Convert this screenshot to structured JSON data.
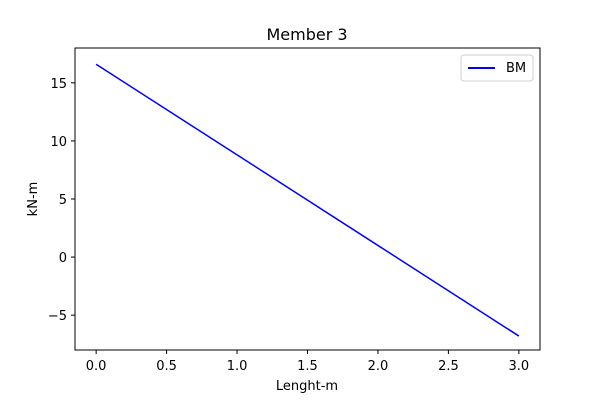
{
  "chart_data": {
    "type": "line",
    "title": "Member 3",
    "xlabel": "Lenght-m",
    "ylabel": "kN-m",
    "xlim": [
      -0.15,
      3.15
    ],
    "ylim": [
      -8.0,
      18.0
    ],
    "xticks": [
      0.0,
      0.5,
      1.0,
      1.5,
      2.0,
      2.5,
      3.0
    ],
    "xtick_labels": [
      "0.0",
      "0.5",
      "1.0",
      "1.5",
      "2.0",
      "2.5",
      "3.0"
    ],
    "yticks": [
      -5,
      0,
      5,
      10,
      15
    ],
    "ytick_labels": [
      "−5",
      "0",
      "5",
      "10",
      "15"
    ],
    "grid": false,
    "legend_position": "top-right",
    "series": [
      {
        "name": "BM",
        "color": "#0000ff",
        "x": [
          0.0,
          3.0
        ],
        "y": [
          16.6,
          -6.8
        ]
      }
    ]
  }
}
